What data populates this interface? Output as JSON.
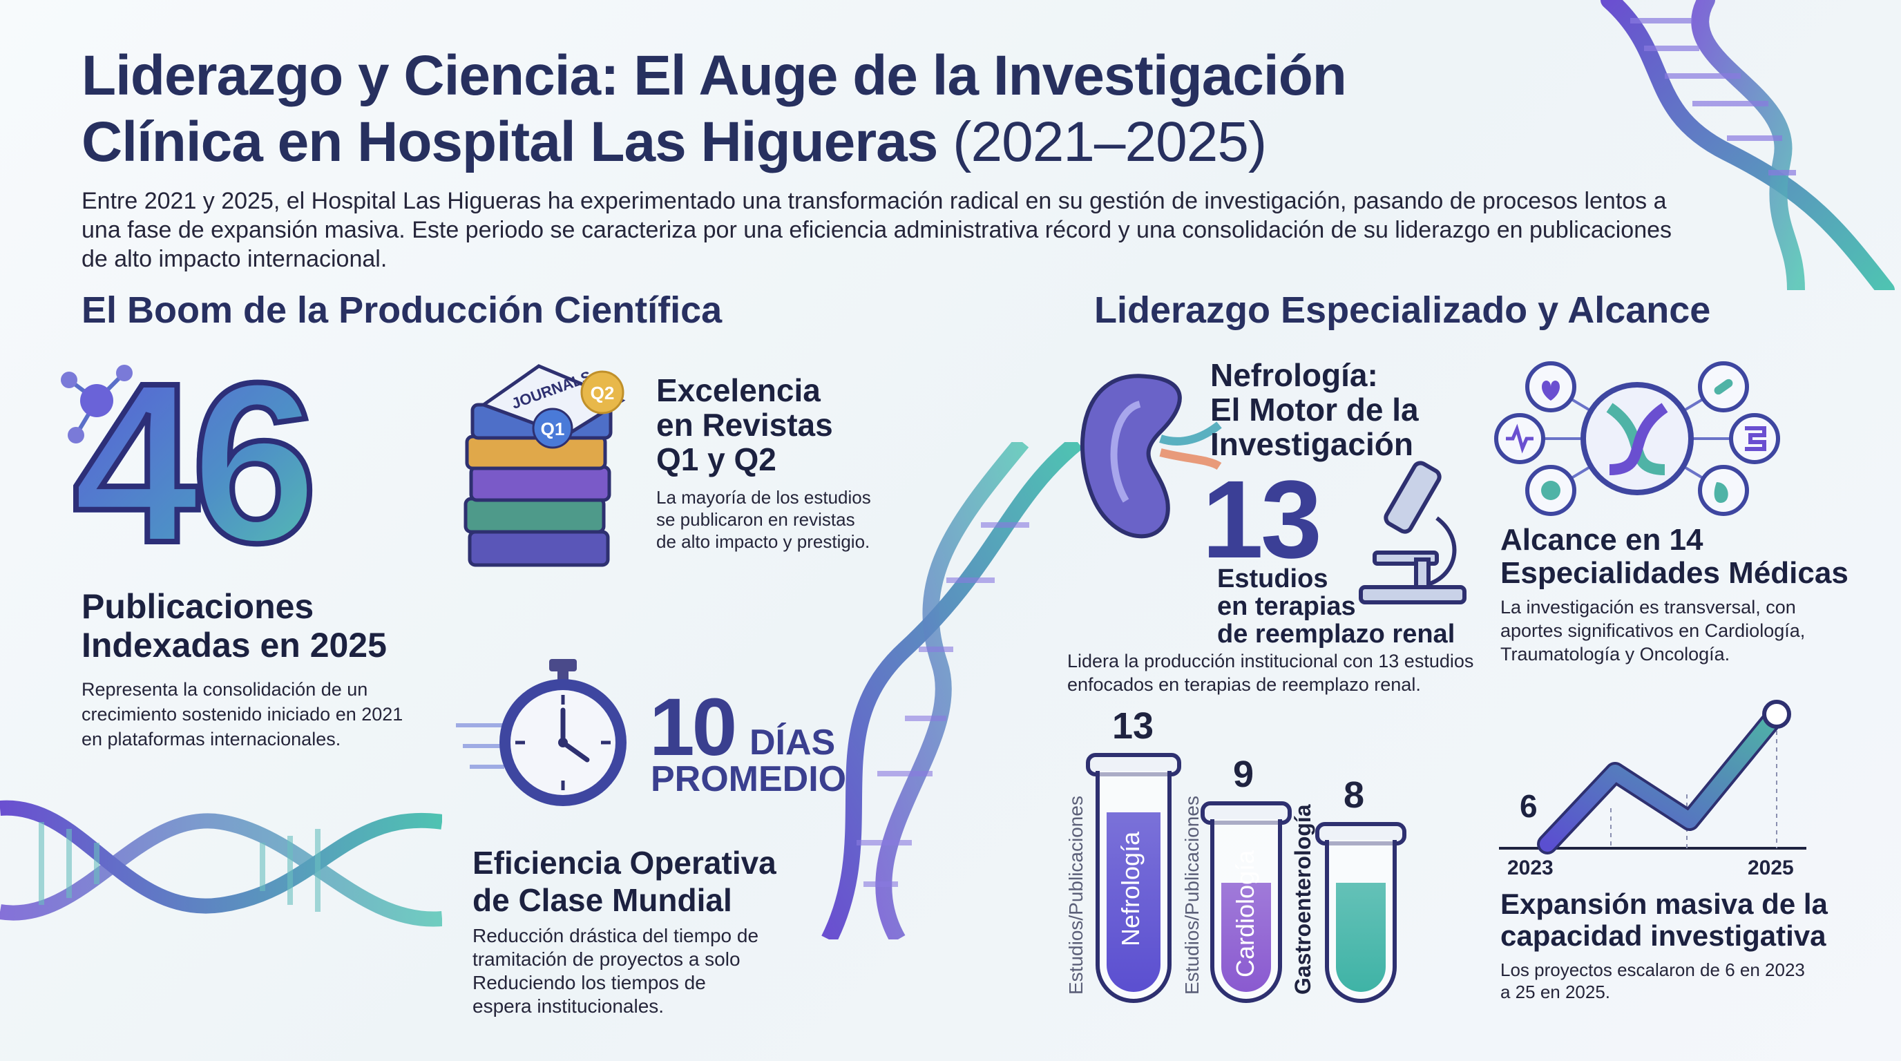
{
  "title": {
    "line1": "Liderazgo y Ciencia: El Auge de la Investigación",
    "line2_main": "Clínica en Hospital Las Higueras",
    "line2_years": "(2021–2025)"
  },
  "intro": "Entre 2021 y 2025, el Hospital Las Higueras ha experimentado una transformación radical en su gestión de investigación, pasando de procesos lentos a una fase de expansión masiva. Este periodo se caracteriza por una eficiencia administrativa récord y una consolidación de su liderazgo en publicaciones de alto impacto internacional.",
  "left_section": {
    "heading": "El Boom de la Producción Científica",
    "publications": {
      "number": "46",
      "title_line1": "Publicaciones",
      "title_line2": "Indexadas en 2025",
      "desc_line1": "Representa la consolidación de un",
      "desc_line2": "crecimiento sostenido iniciado en 2021",
      "desc_line3": "en plataformas internacionales."
    },
    "journals": {
      "book_label": "JOURNALS",
      "badge_q1": "Q1",
      "badge_q2": "Q2",
      "title_line1": "Excelencia",
      "title_line2": "en Revistas",
      "title_line3": "Q1 y Q2",
      "desc_line1": "La mayoría de los estudios",
      "desc_line2": "se publicaron en revistas",
      "desc_line3": "de alto impacto y prestigio."
    },
    "efficiency": {
      "number": "10",
      "unit": "DÍAS",
      "sub": "PROMEDIO",
      "title_line1": "Eficiencia Operativa",
      "title_line2": "de Clase Mundial",
      "desc_line1": "Reducción drástica del tiempo de",
      "desc_line2": "tramitación de proyectos a solo",
      "desc_line3": "Reduciendo los tiempos de",
      "desc_line4": "espera institucionales."
    }
  },
  "right_section": {
    "heading": "Liderazgo Especializado y Alcance",
    "nephro": {
      "title_line1": "Nefrología:",
      "title_line2": "El Motor de la",
      "title_line3": "Investigación",
      "number": "13",
      "sub_line1": "Estudios",
      "sub_line2": "en terapias",
      "sub_line3": "de reemplazo renal",
      "desc_line1": "Lidera la producción institucional con 13 estudios",
      "desc_line2": "enfocados en terapias de reemplazo renal."
    },
    "specialties": {
      "title_line1": "Alcance en 14",
      "title_line2": "Especialidades Médicas",
      "desc_line1": "La investigación es transversal, con",
      "desc_line2": "aportes significativos en Cardiología,",
      "desc_line3": "Traumatología y Oncología."
    },
    "tubes": [
      {
        "value": "13",
        "label": "Nefrología",
        "ylabel": "Estudios/Publicaciones",
        "color": "#5b4fd0",
        "fill": 0.84
      },
      {
        "value": "9",
        "label": "Cardiología",
        "ylabel": "Estudios/Publicaciones",
        "color": "#8a5ad0",
        "fill": 0.66
      },
      {
        "value": "8",
        "label": "Gastroenterología",
        "ylabel": "",
        "color": "#3fb3a6",
        "fill": 0.75
      }
    ],
    "growth": {
      "start_value": "6",
      "x_start": "2023",
      "x_end": "2025",
      "title_line1": "Expansión masiva de la",
      "title_line2": "capacidad investigativa",
      "desc_line1": "Los proyectos escalaron de 6 en 2023",
      "desc_line2": "a 25 en 2025."
    }
  },
  "colors": {
    "navy": "#27305f",
    "purple": "#5a4fd0",
    "teal": "#3fb3a6",
    "gold": "#e8b84a"
  }
}
